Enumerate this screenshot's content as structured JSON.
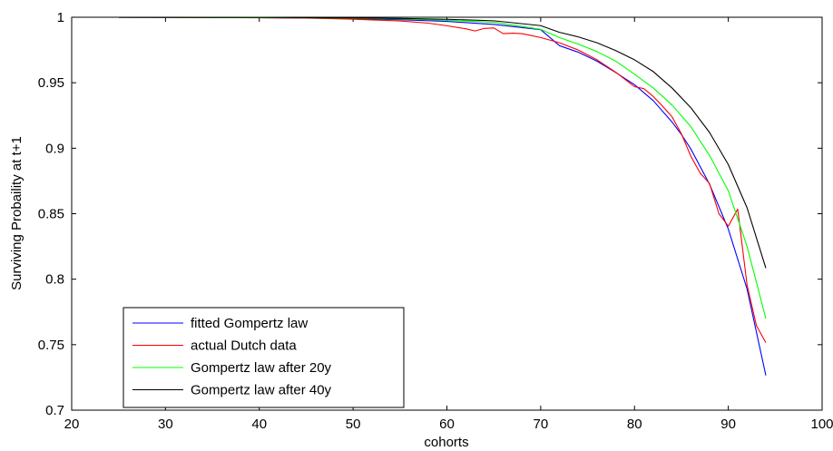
{
  "chart_data": {
    "type": "line",
    "title": "",
    "xlabel": "cohorts",
    "ylabel": "Surviving Probaility at t+1",
    "xlim": [
      20,
      100
    ],
    "ylim": [
      0.7,
      1.0
    ],
    "xticks": [
      20,
      30,
      40,
      50,
      60,
      70,
      80,
      90,
      100
    ],
    "yticks": [
      0.7,
      0.75,
      0.8,
      0.85,
      0.9,
      0.95,
      1
    ],
    "ytick_labels": [
      "0.7",
      "0.75",
      "0.8",
      "0.85",
      "0.9",
      "0.95",
      "1"
    ],
    "grid": false,
    "legend_position": "bottom-left",
    "series": [
      {
        "name": "fitted Gompertz law",
        "color": "#0000ff",
        "x": [
          25,
          30,
          35,
          40,
          45,
          50,
          55,
          60,
          65,
          70,
          72,
          74,
          76,
          78,
          80,
          82,
          84,
          85,
          86,
          88,
          90,
          92,
          94
        ],
        "y": [
          0.99993,
          0.99988,
          0.99979,
          0.99965,
          0.99939,
          0.99894,
          0.99817,
          0.99683,
          0.99451,
          0.9905,
          0.9783,
          0.9733,
          0.9665,
          0.9578,
          0.9485,
          0.9363,
          0.92,
          0.9105,
          0.8995,
          0.8725,
          0.8383,
          0.7925,
          0.7265
        ]
      },
      {
        "name": "actual Dutch data",
        "color": "#ff0000",
        "x": [
          25,
          30,
          35,
          40,
          45,
          50,
          55,
          58,
          60,
          62,
          63,
          64,
          65,
          66,
          67,
          68,
          69,
          70,
          72,
          74,
          76,
          78,
          79,
          80,
          81,
          82,
          83,
          84,
          85,
          86,
          87,
          88,
          89,
          90,
          91,
          92,
          93,
          94
        ],
        "y": [
          0.99993,
          0.99985,
          0.99975,
          0.9996,
          0.9993,
          0.9985,
          0.9972,
          0.9955,
          0.9935,
          0.9912,
          0.9895,
          0.9915,
          0.9918,
          0.9875,
          0.9878,
          0.9875,
          0.986,
          0.9845,
          0.9805,
          0.975,
          0.9675,
          0.958,
          0.9525,
          0.947,
          0.9455,
          0.9395,
          0.932,
          0.924,
          0.911,
          0.894,
          0.881,
          0.873,
          0.85,
          0.8405,
          0.8535,
          0.7955,
          0.7645,
          0.7515
        ]
      },
      {
        "name": "Gompertz law after 20y",
        "color": "#00ff00",
        "x": [
          25,
          30,
          35,
          40,
          45,
          50,
          55,
          60,
          65,
          70,
          72,
          74,
          76,
          78,
          80,
          82,
          84,
          86,
          88,
          90,
          92,
          94
        ],
        "y": [
          0.99995,
          0.99991,
          0.99985,
          0.99975,
          0.99957,
          0.99926,
          0.99872,
          0.99778,
          0.99616,
          0.99075,
          0.9845,
          0.9795,
          0.9738,
          0.9665,
          0.9565,
          0.946,
          0.933,
          0.9165,
          0.8945,
          0.8675,
          0.825,
          0.77
        ]
      },
      {
        "name": "Gompertz law after 40y",
        "color": "#000000",
        "x": [
          25,
          30,
          35,
          40,
          45,
          50,
          55,
          60,
          65,
          70,
          72,
          74,
          76,
          78,
          80,
          82,
          84,
          86,
          88,
          90,
          92,
          94
        ],
        "y": [
          0.99997,
          0.99994,
          0.9999,
          0.99983,
          0.9997,
          0.99948,
          0.9991,
          0.99845,
          0.99732,
          0.9936,
          0.9885,
          0.985,
          0.9805,
          0.9745,
          0.9675,
          0.9585,
          0.946,
          0.931,
          0.912,
          0.8875,
          0.8545,
          0.8085
        ]
      }
    ]
  }
}
